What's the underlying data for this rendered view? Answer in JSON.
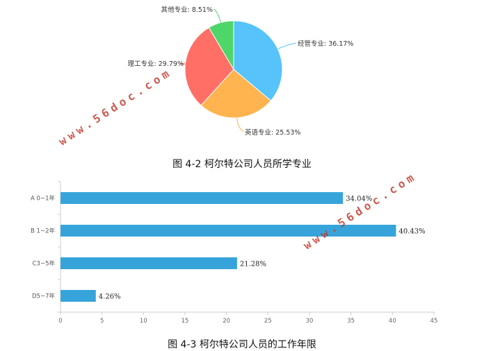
{
  "chart_data": [
    {
      "type": "pie",
      "slices": [
        {
          "label": "经管专业: 36.17%",
          "value": 36.17,
          "color": "#56c3fb"
        },
        {
          "label": "英语专业: 25.53%",
          "value": 25.53,
          "color": "#ffb44f"
        },
        {
          "label": "理工专业: 29.79%",
          "value": 29.79,
          "color": "#ff6f66"
        },
        {
          "label": "其他专业: 8.51%",
          "value": 8.51,
          "color": "#4fd66a"
        }
      ],
      "caption": "图 4-2 柯尔特公司人员所学专业"
    },
    {
      "type": "bar",
      "orientation": "horizontal",
      "categories": [
        "A 0~1年",
        "B 1~2年",
        "C3~5年",
        "D5~7年"
      ],
      "values": [
        34.04,
        40.43,
        21.28,
        4.26
      ],
      "value_labels": [
        "34.04%",
        "40.43%",
        "21.28%",
        "4.26%"
      ],
      "xticks": [
        "0",
        "5",
        "10",
        "15",
        "20",
        "25",
        "30",
        "35",
        "40",
        "45"
      ],
      "xlim": [
        0,
        45
      ],
      "bar_color": "#36a4db",
      "caption": "图 4-3 柯尔特公司人员的工作年限"
    }
  ],
  "watermarks": [
    "www.56doc.com",
    "www.56doc.com"
  ]
}
